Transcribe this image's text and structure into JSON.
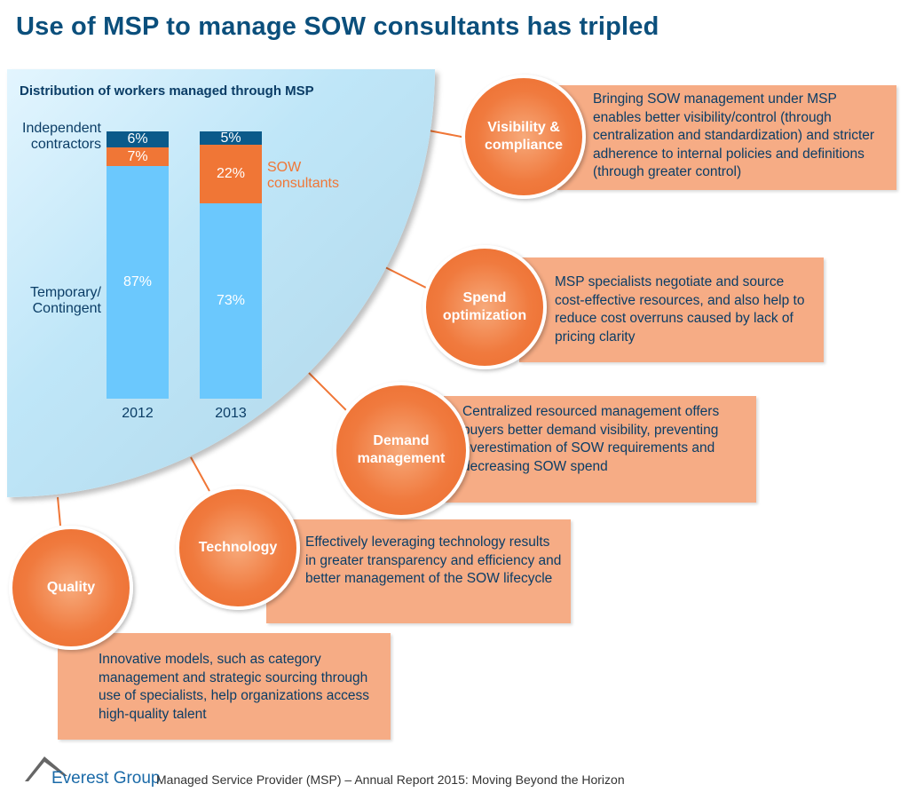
{
  "title": "Use of MSP to manage SOW consultants has tripled",
  "chart_data": {
    "type": "bar",
    "stacked": true,
    "title": "Distribution of workers managed through MSP",
    "categories": [
      "2012",
      "2013"
    ],
    "series": [
      {
        "name": "Temporary/ Contingent",
        "values": [
          87,
          73
        ],
        "labels": [
          "87%",
          "73%"
        ],
        "color": "#6bc8fd"
      },
      {
        "name": "SOW consultants",
        "values": [
          7,
          22
        ],
        "labels": [
          "7%",
          "22%"
        ],
        "color": "#f07636"
      },
      {
        "name": "Independent contractors",
        "values": [
          6,
          5
        ],
        "labels": [
          "6%",
          "5%"
        ],
        "color": "#0b5a8a"
      }
    ],
    "ylim": [
      0,
      100
    ]
  },
  "legend": {
    "independent": "Independent contractors",
    "sow": "SOW consultants",
    "temp_line1": "Temporary/",
    "temp_line2": "Contingent",
    "ind_line1": "Independent",
    "ind_line2": "contractors",
    "sow_line1": "SOW",
    "sow_line2": "consultants"
  },
  "benefits": [
    {
      "name": "Visibility & compliance",
      "l1": "Visibility &",
      "l2": "compliance",
      "text": "Bringing SOW management under MSP enables better visibility/control (through centralization and standardization) and stricter adherence to internal policies and definitions (through greater control)"
    },
    {
      "name": "Spend optimization",
      "l1": "Spend",
      "l2": "optimization",
      "text": "MSP specialists negotiate and source cost-effective resources, and also help to reduce cost overruns caused by lack of pricing clarity"
    },
    {
      "name": "Demand management",
      "l1": "Demand",
      "l2": "management",
      "text": "Centralized resourced management offers buyers better demand visibility, preventing overestimation of SOW requirements and decreasing SOW spend"
    },
    {
      "name": "Technology",
      "l1": "Technology",
      "l2": "",
      "text": "Effectively leveraging technology results in greater transparency and efficiency and better management of the SOW lifecycle"
    },
    {
      "name": "Quality",
      "l1": "Quality",
      "l2": "",
      "text": "Innovative models, such as category management and strategic sourcing through use of specialists, help organizations access high-quality talent"
    }
  ],
  "colors": {
    "accent": "#f07636",
    "navy": "#0b4f7c",
    "box": "#f6ac85"
  },
  "footer": {
    "brand": "Everest Group",
    "text": "Managed Service Provider (MSP) – Annual Report 2015: Moving Beyond the Horizon"
  }
}
